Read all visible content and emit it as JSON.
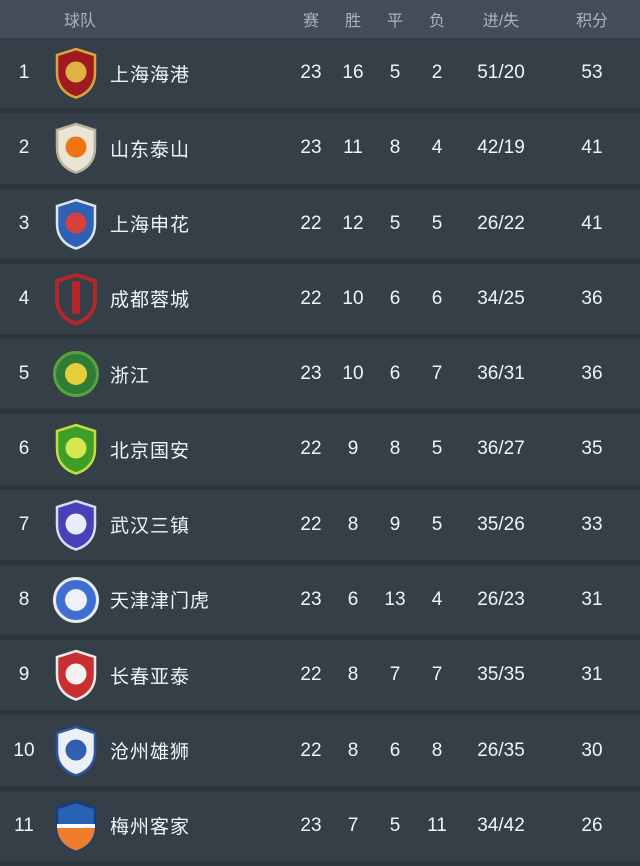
{
  "table": {
    "columns": {
      "team": "球队",
      "played": "赛",
      "wins": "胜",
      "draws": "平",
      "losses": "负",
      "goals": "进/失",
      "points": "积分"
    },
    "rows": [
      {
        "rank": "1",
        "team": "上海海港",
        "played": "23",
        "wins": "16",
        "draws": "5",
        "losses": "2",
        "goals": "51/20",
        "points": "53",
        "logo": {
          "name": "shanghai-port-crest",
          "shape": "shield",
          "fill": "#9e1b21",
          "stroke": "#d9a63c",
          "emblem": "#e0b145",
          "emblemShape": "circle"
        }
      },
      {
        "rank": "2",
        "team": "山东泰山",
        "played": "23",
        "wins": "11",
        "draws": "8",
        "losses": "4",
        "goals": "42/19",
        "points": "41",
        "logo": {
          "name": "shandong-taishan-crest",
          "shape": "shield",
          "fill": "#eae4d4",
          "stroke": "#b9b2a0",
          "emblem": "#ee7414",
          "emblemShape": "circle"
        }
      },
      {
        "rank": "3",
        "team": "上海申花",
        "played": "22",
        "wins": "12",
        "draws": "5",
        "losses": "5",
        "goals": "26/22",
        "points": "41",
        "logo": {
          "name": "shanghai-shenhua-crest",
          "shape": "shield",
          "fill": "#2b62b4",
          "stroke": "#dde4ee",
          "emblem": "#d84040",
          "emblemShape": "circle"
        }
      },
      {
        "rank": "4",
        "team": "成都蓉城",
        "played": "22",
        "wins": "10",
        "draws": "6",
        "losses": "6",
        "goals": "34/25",
        "points": "36",
        "logo": {
          "name": "chengdu-rongcheng-crest",
          "shape": "shield-outline",
          "fill": "#b3262b",
          "stroke": "#b3262b",
          "emblem": "#b3262b",
          "emblemShape": "bar"
        }
      },
      {
        "rank": "5",
        "team": "浙江",
        "played": "23",
        "wins": "10",
        "draws": "6",
        "losses": "7",
        "goals": "36/31",
        "points": "36",
        "logo": {
          "name": "zhejiang-crest",
          "shape": "circle",
          "fill": "#2e7c35",
          "stroke": "#57a23c",
          "emblem": "#e3cf3a",
          "emblemShape": "circle"
        }
      },
      {
        "rank": "6",
        "team": "北京国安",
        "played": "22",
        "wins": "9",
        "draws": "8",
        "losses": "5",
        "goals": "36/27",
        "points": "35",
        "logo": {
          "name": "beijing-guoan-crest",
          "shape": "shield",
          "fill": "#3f9e27",
          "stroke": "#c4dd3f",
          "emblem": "#d6e84e",
          "emblemShape": "circle"
        }
      },
      {
        "rank": "7",
        "team": "武汉三镇",
        "played": "22",
        "wins": "8",
        "draws": "9",
        "losses": "5",
        "goals": "35/26",
        "points": "33",
        "logo": {
          "name": "wuhan-three-towns-crest",
          "shape": "shield",
          "fill": "#4840b8",
          "stroke": "#d7dbf2",
          "emblem": "#e9ebf8",
          "emblemShape": "circle"
        }
      },
      {
        "rank": "8",
        "team": "天津津门虎",
        "played": "23",
        "wins": "6",
        "draws": "13",
        "losses": "4",
        "goals": "26/23",
        "points": "31",
        "logo": {
          "name": "tianjin-jinmen-tiger-crest",
          "shape": "circle",
          "fill": "#3d6fd2",
          "stroke": "#e6ebf4",
          "emblem": "#eef2f8",
          "emblemShape": "circle"
        }
      },
      {
        "rank": "9",
        "team": "长春亚泰",
        "played": "22",
        "wins": "8",
        "draws": "7",
        "losses": "7",
        "goals": "35/35",
        "points": "31",
        "logo": {
          "name": "changchun-yatai-crest",
          "shape": "shield",
          "fill": "#c92f31",
          "stroke": "#efe9e9",
          "emblem": "#f4f1ef",
          "emblemShape": "circle"
        }
      },
      {
        "rank": "10",
        "team": "沧州雄狮",
        "played": "22",
        "wins": "8",
        "draws": "6",
        "losses": "8",
        "goals": "26/35",
        "points": "30",
        "logo": {
          "name": "cangzhou-mighty-lions-crest",
          "shape": "shield",
          "fill": "#edf0f4",
          "stroke": "#2c55a6",
          "emblem": "#335fb2",
          "emblemShape": "circle"
        }
      },
      {
        "rank": "11",
        "team": "梅州客家",
        "played": "23",
        "wins": "7",
        "draws": "5",
        "losses": "11",
        "goals": "34/42",
        "points": "26",
        "logo": {
          "name": "meizhou-hakka-crest",
          "shape": "shield",
          "fill": "#2a63b6",
          "stroke": "#163e7e",
          "emblem": "#ee7d2c",
          "emblemShape": "half"
        }
      }
    ]
  },
  "colors": {
    "header_bg": "#434d58",
    "header_text": "#aab4be",
    "row_bg": "#343f47",
    "row_gap": "#2d363d",
    "row_text": "#f2f4f6"
  }
}
